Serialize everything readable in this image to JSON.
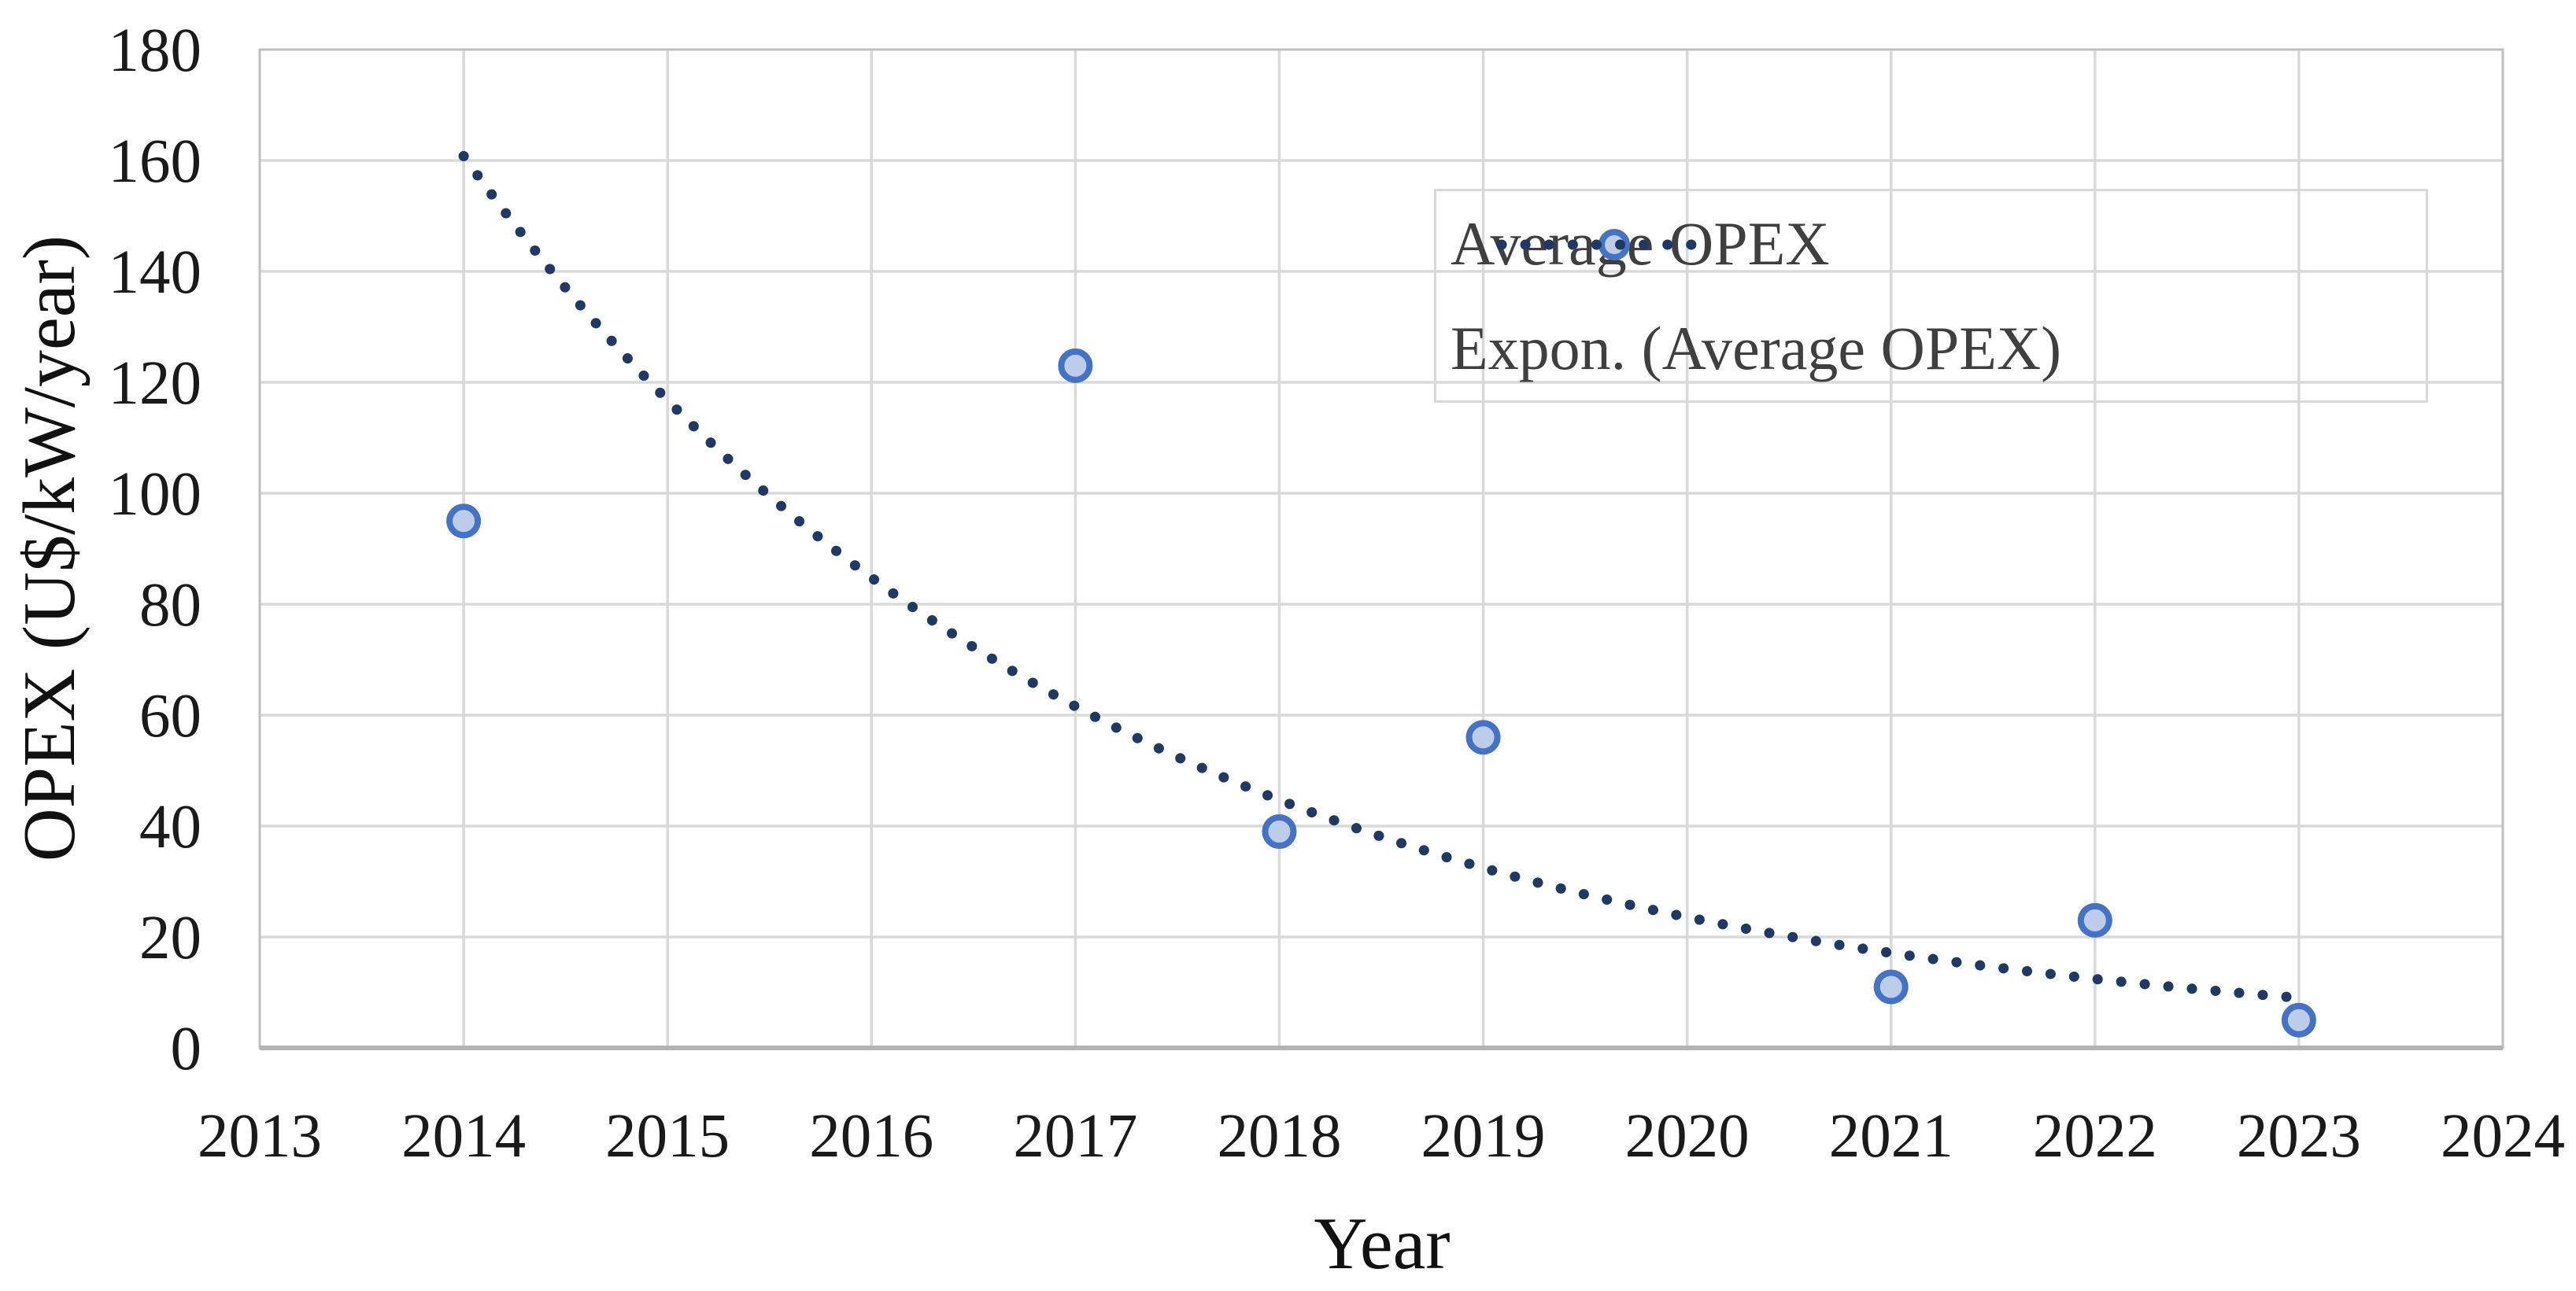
{
  "chart_data": {
    "type": "scatter",
    "title": "",
    "xlabel": "Year",
    "ylabel": "OPEX (U$/kW/year)",
    "xlim": [
      2013,
      2024
    ],
    "ylim": [
      0,
      180
    ],
    "x_ticks": [
      2013,
      2014,
      2015,
      2016,
      2017,
      2018,
      2019,
      2020,
      2021,
      2022,
      2023,
      2024
    ],
    "y_ticks": [
      0,
      20,
      40,
      60,
      80,
      100,
      120,
      140,
      160,
      180
    ],
    "grid": true,
    "series": [
      {
        "name": "Average OPEX",
        "type": "scatter",
        "x": [
          2014,
          2017,
          2018,
          2019,
          2021,
          2022,
          2023
        ],
        "y": [
          95,
          123,
          39,
          56,
          11,
          23,
          5
        ]
      },
      {
        "name": "Expon. (Average OPEX)",
        "type": "exponential_trendline",
        "equation": "y = 160.8·e^(-0.320·(x-2014))",
        "a": 160.8,
        "b": -0.32,
        "x0": 2014,
        "x_start": 2014,
        "x_end": 2023,
        "y_start": 161,
        "y_end": 9
      }
    ],
    "legend_position": "upper-right"
  },
  "colors": {
    "marker_stroke": "#4472c4",
    "marker_fill": "#bccdea",
    "trendline": "#1f3864",
    "gridline": "#d9d9d9",
    "plot_border": "#bfbfbf",
    "x_axis_line": "#b3b3b3",
    "tick_text": "#1a1a1a",
    "legend_text": "#3f3f3f",
    "background": "#ffffff"
  }
}
